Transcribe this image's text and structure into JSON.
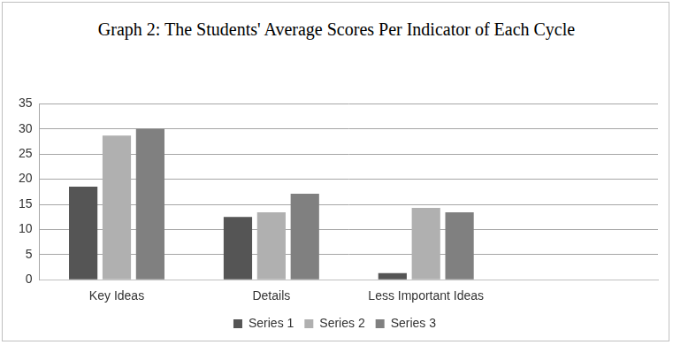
{
  "chart_data": {
    "type": "bar",
    "title": "Graph 2: The Students' Average Scores Per Indicator of Each Cycle",
    "categories": [
      "Key Ideas",
      "Details",
      "Less Important Ideas",
      null
    ],
    "series": [
      {
        "name": "Series 1",
        "color": "#555555",
        "values": [
          18.5,
          12.5,
          1.3,
          null
        ]
      },
      {
        "name": "Series 2",
        "color": "#b0b0b0",
        "values": [
          28.7,
          13.4,
          14.3,
          null
        ]
      },
      {
        "name": "Series 3",
        "color": "#808080",
        "values": [
          30,
          17.1,
          13.4,
          null
        ]
      }
    ],
    "ylim": [
      0,
      35
    ],
    "yticks": [
      0,
      5,
      10,
      15,
      20,
      25,
      30,
      35
    ],
    "grid": true,
    "legend": "bottom"
  }
}
